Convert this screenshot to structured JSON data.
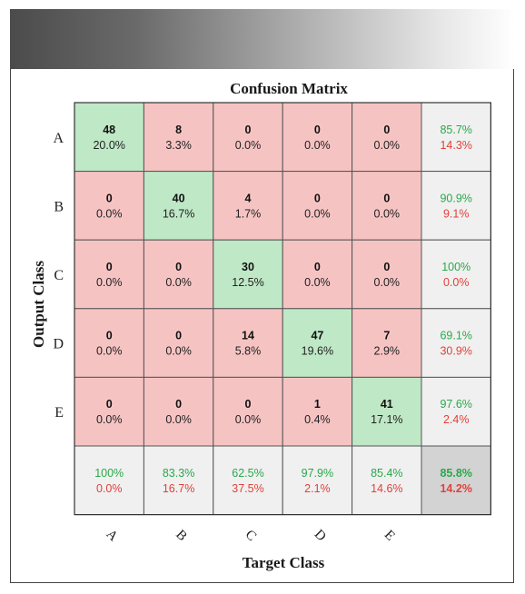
{
  "chart_data": {
    "type": "heatmap",
    "title": "Confusion Matrix",
    "xlabel": "Target Class",
    "ylabel": "Output Class",
    "row_labels": [
      "A",
      "B",
      "C",
      "D",
      "E"
    ],
    "col_labels": [
      "A",
      "B",
      "C",
      "D",
      "E"
    ],
    "counts": [
      [
        48,
        8,
        0,
        0,
        0
      ],
      [
        0,
        40,
        4,
        0,
        0
      ],
      [
        0,
        0,
        30,
        0,
        0
      ],
      [
        0,
        0,
        14,
        47,
        7
      ],
      [
        0,
        0,
        0,
        1,
        41
      ]
    ],
    "percents": [
      [
        "20.0%",
        "3.3%",
        "0.0%",
        "0.0%",
        "0.0%"
      ],
      [
        "0.0%",
        "16.7%",
        "1.7%",
        "0.0%",
        "0.0%"
      ],
      [
        "0.0%",
        "0.0%",
        "12.5%",
        "0.0%",
        "0.0%"
      ],
      [
        "0.0%",
        "0.0%",
        "5.8%",
        "19.6%",
        "2.9%"
      ],
      [
        "0.0%",
        "0.0%",
        "0.0%",
        "0.4%",
        "17.1%"
      ]
    ],
    "row_summary": [
      {
        "correct": "85.7%",
        "incorrect": "14.3%"
      },
      {
        "correct": "90.9%",
        "incorrect": "9.1%"
      },
      {
        "correct": "100%",
        "incorrect": "0.0%"
      },
      {
        "correct": "69.1%",
        "incorrect": "30.9%"
      },
      {
        "correct": "97.6%",
        "incorrect": "2.4%"
      }
    ],
    "col_summary": [
      {
        "correct": "100%",
        "incorrect": "0.0%"
      },
      {
        "correct": "83.3%",
        "incorrect": "16.7%"
      },
      {
        "correct": "62.5%",
        "incorrect": "37.5%"
      },
      {
        "correct": "97.9%",
        "incorrect": "2.1%"
      },
      {
        "correct": "85.4%",
        "incorrect": "14.6%"
      }
    ],
    "overall": {
      "correct": "85.8%",
      "incorrect": "14.2%"
    }
  },
  "colors": {
    "diagonal": "#bfe8c6",
    "off_diagonal": "#f6c3c3",
    "summary": "#f0f0f0",
    "overall": "#d3d3d3",
    "correct_text": "#2aa84a",
    "incorrect_text": "#e0413a",
    "grid": "#555555"
  }
}
